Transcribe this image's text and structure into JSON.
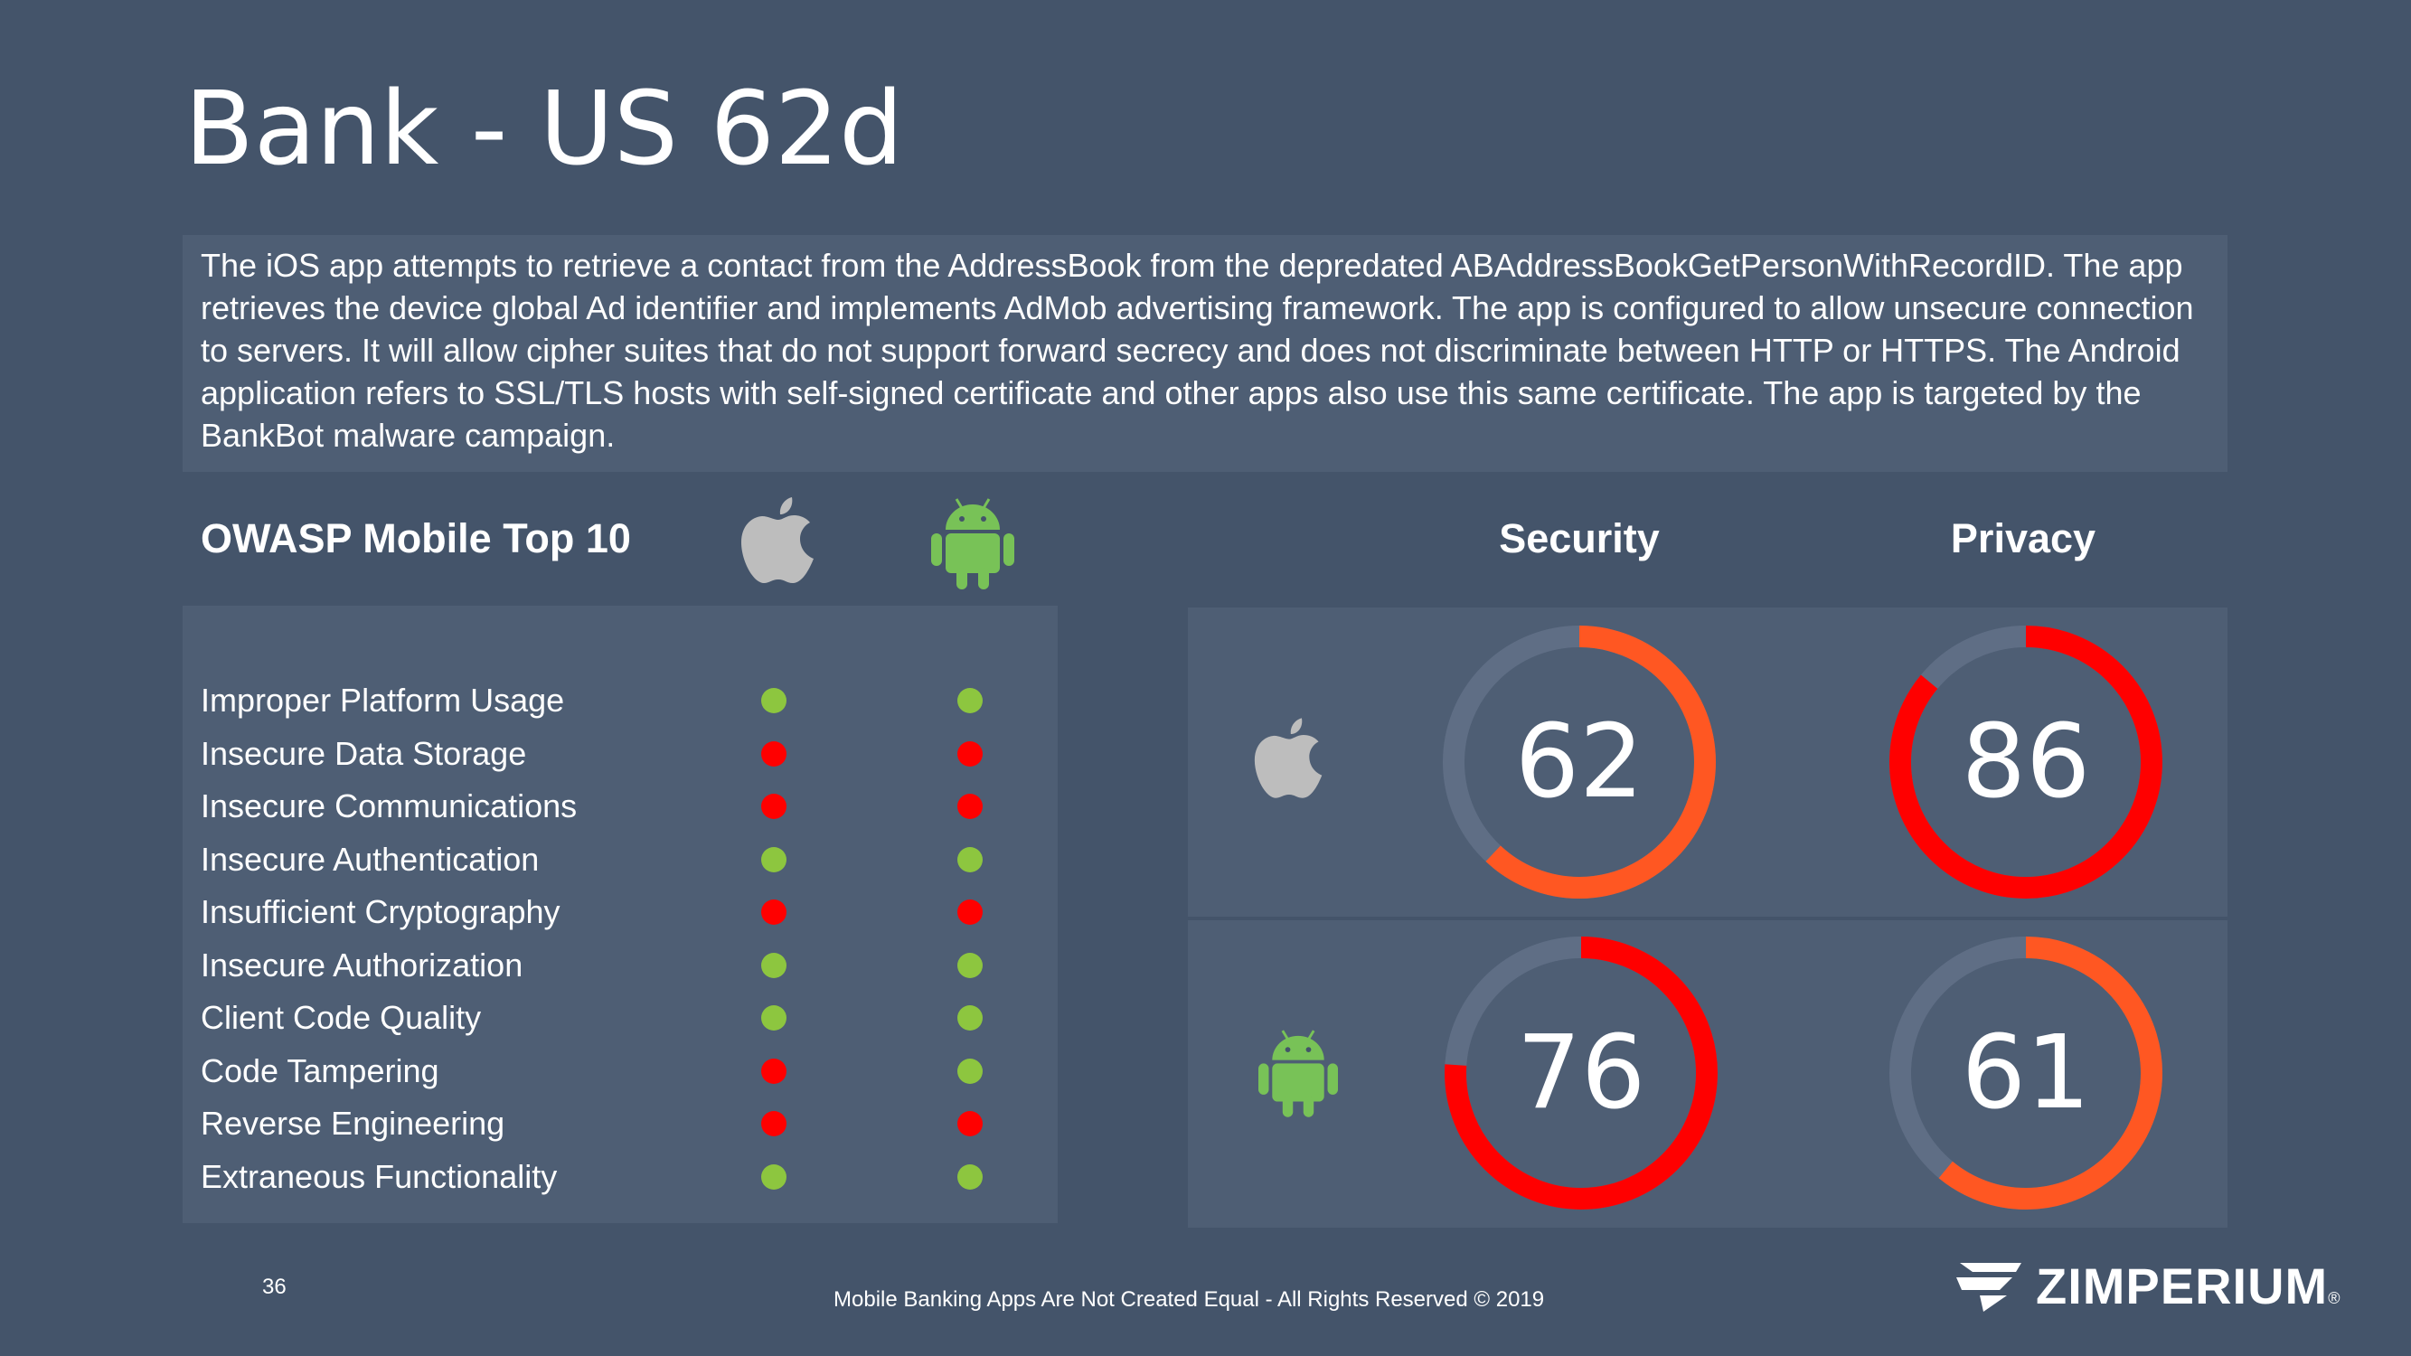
{
  "title": "Bank - US 62d",
  "description": "The iOS app attempts to retrieve a contact from the AddressBook from the depredated ABAddressBookGetPersonWithRecordID. The app retrieves the device global Ad identifier and implements AdMob advertising framework. The app is configured to allow unsecure connection to servers. It will allow cipher suites that do not support forward secrecy and does not discriminate between HTTP or HTTPS. The Android application refers to SSL/TLS hosts with self-signed certificate and other apps also use this same certificate. The app is targeted by the BankBot malware campaign.",
  "owasp": {
    "heading": "OWASP Mobile Top 10",
    "rows": [
      {
        "label": "Improper Platform Usage",
        "ios": "pass",
        "android": "pass"
      },
      {
        "label": "Insecure Data Storage",
        "ios": "fail",
        "android": "fail"
      },
      {
        "label": "Insecure Communications",
        "ios": "fail",
        "android": "fail"
      },
      {
        "label": "Insecure Authentication",
        "ios": "pass",
        "android": "pass"
      },
      {
        "label": "Insufficient Cryptography",
        "ios": "fail",
        "android": "fail"
      },
      {
        "label": "Insecure Authorization",
        "ios": "pass",
        "android": "pass"
      },
      {
        "label": "Client Code Quality",
        "ios": "pass",
        "android": "pass"
      },
      {
        "label": "Code Tampering",
        "ios": "fail",
        "android": "pass"
      },
      {
        "label": "Reverse Engineering",
        "ios": "fail",
        "android": "fail"
      },
      {
        "label": "Extraneous Functionality",
        "ios": "pass",
        "android": "pass"
      }
    ]
  },
  "scores": {
    "security_label": "Security",
    "privacy_label": "Privacy",
    "ios": {
      "security": 62,
      "privacy": 86,
      "security_color": "#ff5722",
      "privacy_color": "#ff0000"
    },
    "android": {
      "security": 76,
      "privacy": 61,
      "security_color": "#ff0000",
      "privacy_color": "#ff5722"
    }
  },
  "colors": {
    "pass": "#8dc63f",
    "fail": "#ff0000",
    "track": "#5f6e85",
    "apple_icon": "#bdbdbd",
    "android_icon": "#78c257"
  },
  "icons": {
    "ios": "apple-icon",
    "android": "android-icon"
  },
  "footer": {
    "page_number": "36",
    "text": "Mobile Banking Apps Are Not Created Equal - All Rights Reserved © 2019",
    "logo_text": "ZIMPERIUM",
    "logo_mark": "®"
  }
}
